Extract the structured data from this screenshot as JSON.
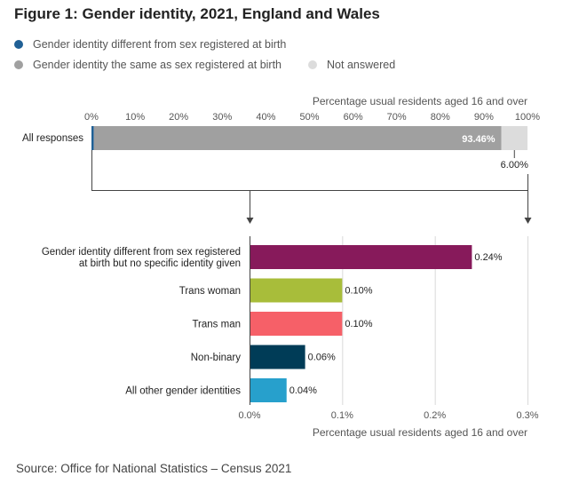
{
  "title": "Figure 1: Gender identity, 2021, England and Wales",
  "legend": [
    {
      "label": "Gender identity different from sex registered at birth",
      "color": "#206095"
    },
    {
      "label": "Gender identity the same as sex registered at birth",
      "color": "#a0a0a0"
    },
    {
      "label": "Not answered",
      "color": "#dcdcdc"
    }
  ],
  "source": "Source: Office for National Statistics – Census 2021",
  "chart_data": [
    {
      "type": "bar",
      "orientation": "horizontal",
      "stacked": true,
      "xlabel": "Percentage usual residents aged 16 and over",
      "xlim": [
        0,
        100
      ],
      "tick_labels": [
        "0%",
        "10%",
        "20%",
        "30%",
        "40%",
        "50%",
        "60%",
        "70%",
        "80%",
        "90%",
        "100%"
      ],
      "categories": [
        "All responses"
      ],
      "series": [
        {
          "name": "Gender identity different from sex registered at birth",
          "values": [
            0.54
          ],
          "color": "#206095"
        },
        {
          "name": "Gender identity the same as sex registered at birth",
          "values": [
            93.46
          ],
          "color": "#a0a0a0",
          "label": "93.46%"
        },
        {
          "name": "Not answered",
          "values": [
            6.0
          ],
          "color": "#dcdcdc",
          "label": "6.00%"
        }
      ]
    },
    {
      "type": "bar",
      "orientation": "horizontal",
      "xlabel": "Percentage usual residents aged 16 and over",
      "xlim": [
        0,
        0.3
      ],
      "tick_labels": [
        "0.0%",
        "0.1%",
        "0.2%",
        "0.3%"
      ],
      "categories": [
        "Gender identity different from sex registered at birth but no specific identity given",
        "Trans woman",
        "Trans man",
        "Non-binary",
        "All other gender identities"
      ],
      "category_lines": [
        [
          "Gender identity different from sex registered",
          "at birth but no specific identity given"
        ],
        [
          "Trans woman"
        ],
        [
          "Trans man"
        ],
        [
          "Non-binary"
        ],
        [
          "All other gender identities"
        ]
      ],
      "values": [
        0.24,
        0.1,
        0.1,
        0.06,
        0.04
      ],
      "labels": [
        "0.24%",
        "0.10%",
        "0.10%",
        "0.06%",
        "0.04%"
      ],
      "colors": [
        "#871a5b",
        "#a8bd3a",
        "#f66068",
        "#003c57",
        "#27a0cc"
      ]
    }
  ]
}
